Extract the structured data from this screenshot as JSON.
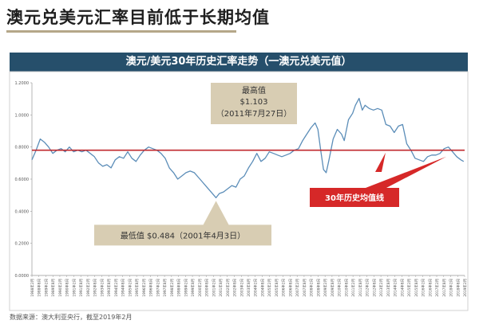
{
  "page_title": "澳元兑美元汇率目前低于长期均值",
  "source": "数据来源：澳大利亚央行，截至2019年2月",
  "colors": {
    "banner": "#264f6b",
    "line": "#5b8db8",
    "average_line": "#c0282d",
    "callout_box": "#d8cdb3",
    "average_label_box": "#d62828",
    "title_rule": "#b5a789"
  },
  "chart_data": {
    "type": "line",
    "title": "澳元/美元30年历史汇率走势（一澳元兑美元值）",
    "ylim": [
      0,
      1.2
    ],
    "yticks": [
      "0.0000",
      "0.2000",
      "0.4000",
      "0.6000",
      "0.8000",
      "1.0000",
      "1.2000"
    ],
    "xlim": [
      1988.0,
      2019.17
    ],
    "x_tick_labels": [
      "1988年2月",
      "1988年8月",
      "1989年2月",
      "1989年8月",
      "1990年2月",
      "1990年8月",
      "1991年2月",
      "1991年8月",
      "1992年2月",
      "1992年8月",
      "1993年2月",
      "1993年8月",
      "1994年2月",
      "1994年8月",
      "1995年2月",
      "1995年8月",
      "1996年2月",
      "1996年8月",
      "1997年2月",
      "1997年8月",
      "1998年2月",
      "1998年8月",
      "1999年2月",
      "1999年8月",
      "2000年2月",
      "2000年8月",
      "2001年2月",
      "2001年8月",
      "2002年2月",
      "2002年8月",
      "2003年2月",
      "2003年8月",
      "2004年2月",
      "2004年8月",
      "2005年2月",
      "2005年8月",
      "2006年2月",
      "2006年8月",
      "2007年2月",
      "2007年8月",
      "2008年2月",
      "2008年8月",
      "2009年2月",
      "2009年8月",
      "2010年2月",
      "2010年8月",
      "2011年2月",
      "2011年8月",
      "2012年2月",
      "2012年8月",
      "2013年2月",
      "2013年8月",
      "2014年2月",
      "2014年8月",
      "2015年2月",
      "2015年8月",
      "2016年2月",
      "2016年8月",
      "2017年2月",
      "2017年8月",
      "2018年2月",
      "2018年8月",
      "2019年2月"
    ],
    "average": 0.78,
    "average_label": "30年历史均值线",
    "series": [
      {
        "x": [
          1988.0,
          1988.3,
          1988.6,
          1988.9,
          1989.2,
          1989.5,
          1989.8,
          1990.1,
          1990.4,
          1990.7,
          1991.0,
          1991.3,
          1991.6,
          1991.9,
          1992.2,
          1992.5,
          1992.8,
          1993.1,
          1993.4,
          1993.7,
          1994.0,
          1994.3,
          1994.6,
          1994.9,
          1995.2,
          1995.5,
          1995.8,
          1996.1,
          1996.4,
          1996.7,
          1997.0,
          1997.3,
          1997.6,
          1997.9,
          1998.2,
          1998.5,
          1998.8,
          1999.1,
          1999.4,
          1999.7,
          2000.0,
          2000.3,
          2000.6,
          2000.9,
          2001.26,
          2001.5,
          2001.8,
          2002.1,
          2002.4,
          2002.7,
          2003.0,
          2003.3,
          2003.6,
          2003.9,
          2004.2,
          2004.5,
          2004.8,
          2005.1,
          2005.4,
          2005.7,
          2006.0,
          2006.3,
          2006.6,
          2006.9,
          2007.2,
          2007.5,
          2007.8,
          2008.1,
          2008.4,
          2008.6,
          2008.8,
          2009.0,
          2009.2,
          2009.4,
          2009.7,
          2010.0,
          2010.3,
          2010.5,
          2010.8,
          2011.1,
          2011.3,
          2011.57,
          2011.8,
          2012.0,
          2012.3,
          2012.6,
          2012.9,
          2013.2,
          2013.5,
          2013.8,
          2014.1,
          2014.4,
          2014.7,
          2015.0,
          2015.3,
          2015.6,
          2015.9,
          2016.2,
          2016.5,
          2016.8,
          2017.1,
          2017.4,
          2017.7,
          2018.0,
          2018.3,
          2018.6,
          2018.9,
          2019.1
        ],
        "values": [
          0.72,
          0.78,
          0.85,
          0.83,
          0.8,
          0.76,
          0.78,
          0.79,
          0.77,
          0.8,
          0.77,
          0.78,
          0.77,
          0.78,
          0.76,
          0.74,
          0.7,
          0.68,
          0.69,
          0.67,
          0.72,
          0.74,
          0.73,
          0.77,
          0.73,
          0.71,
          0.75,
          0.78,
          0.8,
          0.79,
          0.78,
          0.76,
          0.73,
          0.67,
          0.64,
          0.6,
          0.62,
          0.64,
          0.65,
          0.64,
          0.61,
          0.58,
          0.55,
          0.52,
          0.484,
          0.51,
          0.52,
          0.54,
          0.56,
          0.55,
          0.6,
          0.62,
          0.67,
          0.71,
          0.76,
          0.71,
          0.73,
          0.77,
          0.76,
          0.75,
          0.74,
          0.75,
          0.76,
          0.78,
          0.79,
          0.84,
          0.88,
          0.92,
          0.95,
          0.91,
          0.78,
          0.66,
          0.64,
          0.72,
          0.85,
          0.91,
          0.88,
          0.84,
          0.97,
          1.01,
          1.06,
          1.103,
          1.03,
          1.06,
          1.04,
          1.03,
          1.04,
          1.03,
          0.94,
          0.93,
          0.89,
          0.93,
          0.94,
          0.82,
          0.78,
          0.73,
          0.72,
          0.71,
          0.74,
          0.75,
          0.75,
          0.76,
          0.79,
          0.8,
          0.77,
          0.74,
          0.72,
          0.71
        ]
      }
    ],
    "annotations": {
      "max": {
        "label": "最高值",
        "value": "$1.103",
        "date": "（2011年7月27日）",
        "x": 2011.57,
        "y": 1.103
      },
      "min": {
        "label": "最低值 $0.484（2001年4月3日）",
        "x": 2001.26,
        "y": 0.484
      }
    }
  }
}
